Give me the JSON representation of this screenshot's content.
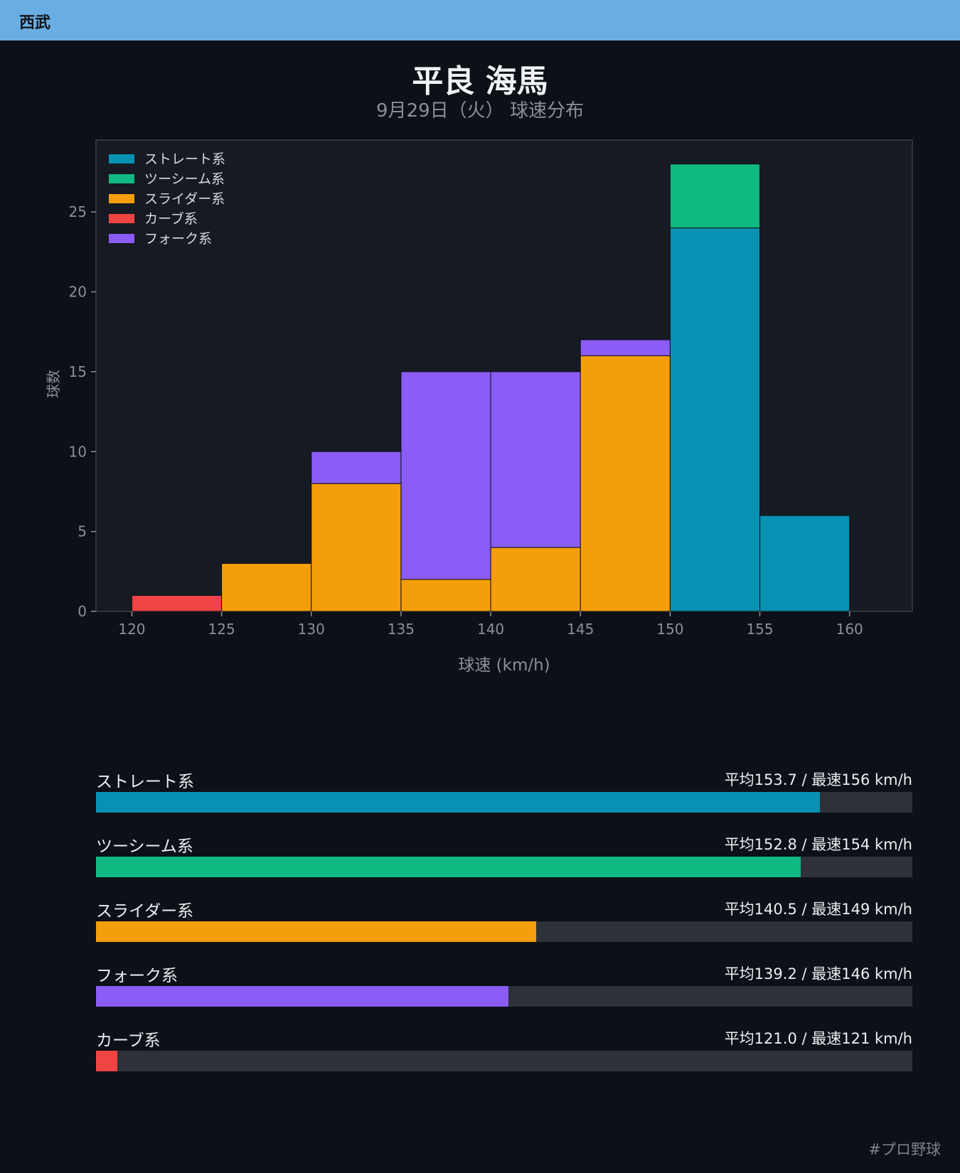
{
  "header": {
    "team": "西武"
  },
  "title": "平良 海馬",
  "subtitle": "9月29日（火） 球速分布",
  "chart_data": {
    "type": "bar",
    "stacked": true,
    "xlabel": "球速 (km/h)",
    "ylabel": "球数",
    "xlim": [
      118,
      163.5
    ],
    "ylim": [
      0,
      29.5
    ],
    "xticks": [
      120,
      125,
      130,
      135,
      140,
      145,
      150,
      155,
      160
    ],
    "yticks": [
      0,
      5,
      10,
      15,
      20,
      25
    ],
    "bins": [
      [
        120,
        125
      ],
      [
        125,
        130
      ],
      [
        130,
        135
      ],
      [
        135,
        140
      ],
      [
        140,
        145
      ],
      [
        145,
        150
      ],
      [
        150,
        155
      ],
      [
        155,
        160
      ]
    ],
    "legend_position": "top-left",
    "grid": false,
    "series": [
      {
        "name": "ストレート系",
        "color": "#0891b2",
        "values": [
          0,
          0,
          0,
          0,
          0,
          0,
          24,
          6
        ]
      },
      {
        "name": "ツーシーム系",
        "color": "#10b981",
        "values": [
          0,
          0,
          0,
          0,
          0,
          0,
          4,
          0
        ]
      },
      {
        "name": "スライダー系",
        "color": "#f59e0b",
        "values": [
          0,
          3,
          8,
          2,
          4,
          16,
          0,
          0
        ]
      },
      {
        "name": "カーブ系",
        "color": "#ef4444",
        "values": [
          1,
          0,
          0,
          0,
          0,
          0,
          0,
          0
        ]
      },
      {
        "name": "フォーク系",
        "color": "#8b5cf6",
        "values": [
          0,
          0,
          2,
          13,
          11,
          1,
          0,
          0
        ]
      }
    ],
    "stack_order": [
      3,
      2,
      4,
      0,
      1
    ]
  },
  "speed_scale": {
    "min": 120,
    "max": 158
  },
  "stats": [
    {
      "label": "ストレート系",
      "value_text": "平均153.7 / 最速156 km/h",
      "avg": 153.7,
      "color": "#0891b2"
    },
    {
      "label": "ツーシーム系",
      "value_text": "平均152.8 / 最速154 km/h",
      "avg": 152.8,
      "color": "#10b981"
    },
    {
      "label": "スライダー系",
      "value_text": "平均140.5 / 最速149 km/h",
      "avg": 140.5,
      "color": "#f59e0b"
    },
    {
      "label": "フォーク系",
      "value_text": "平均139.2 / 最速146 km/h",
      "avg": 139.2,
      "color": "#8b5cf6"
    },
    {
      "label": "カーブ系",
      "value_text": "平均121.0 / 最速121 km/h",
      "avg": 121.0,
      "color": "#ef4444"
    }
  ],
  "footer": {
    "hashtag": "#プロ野球"
  }
}
